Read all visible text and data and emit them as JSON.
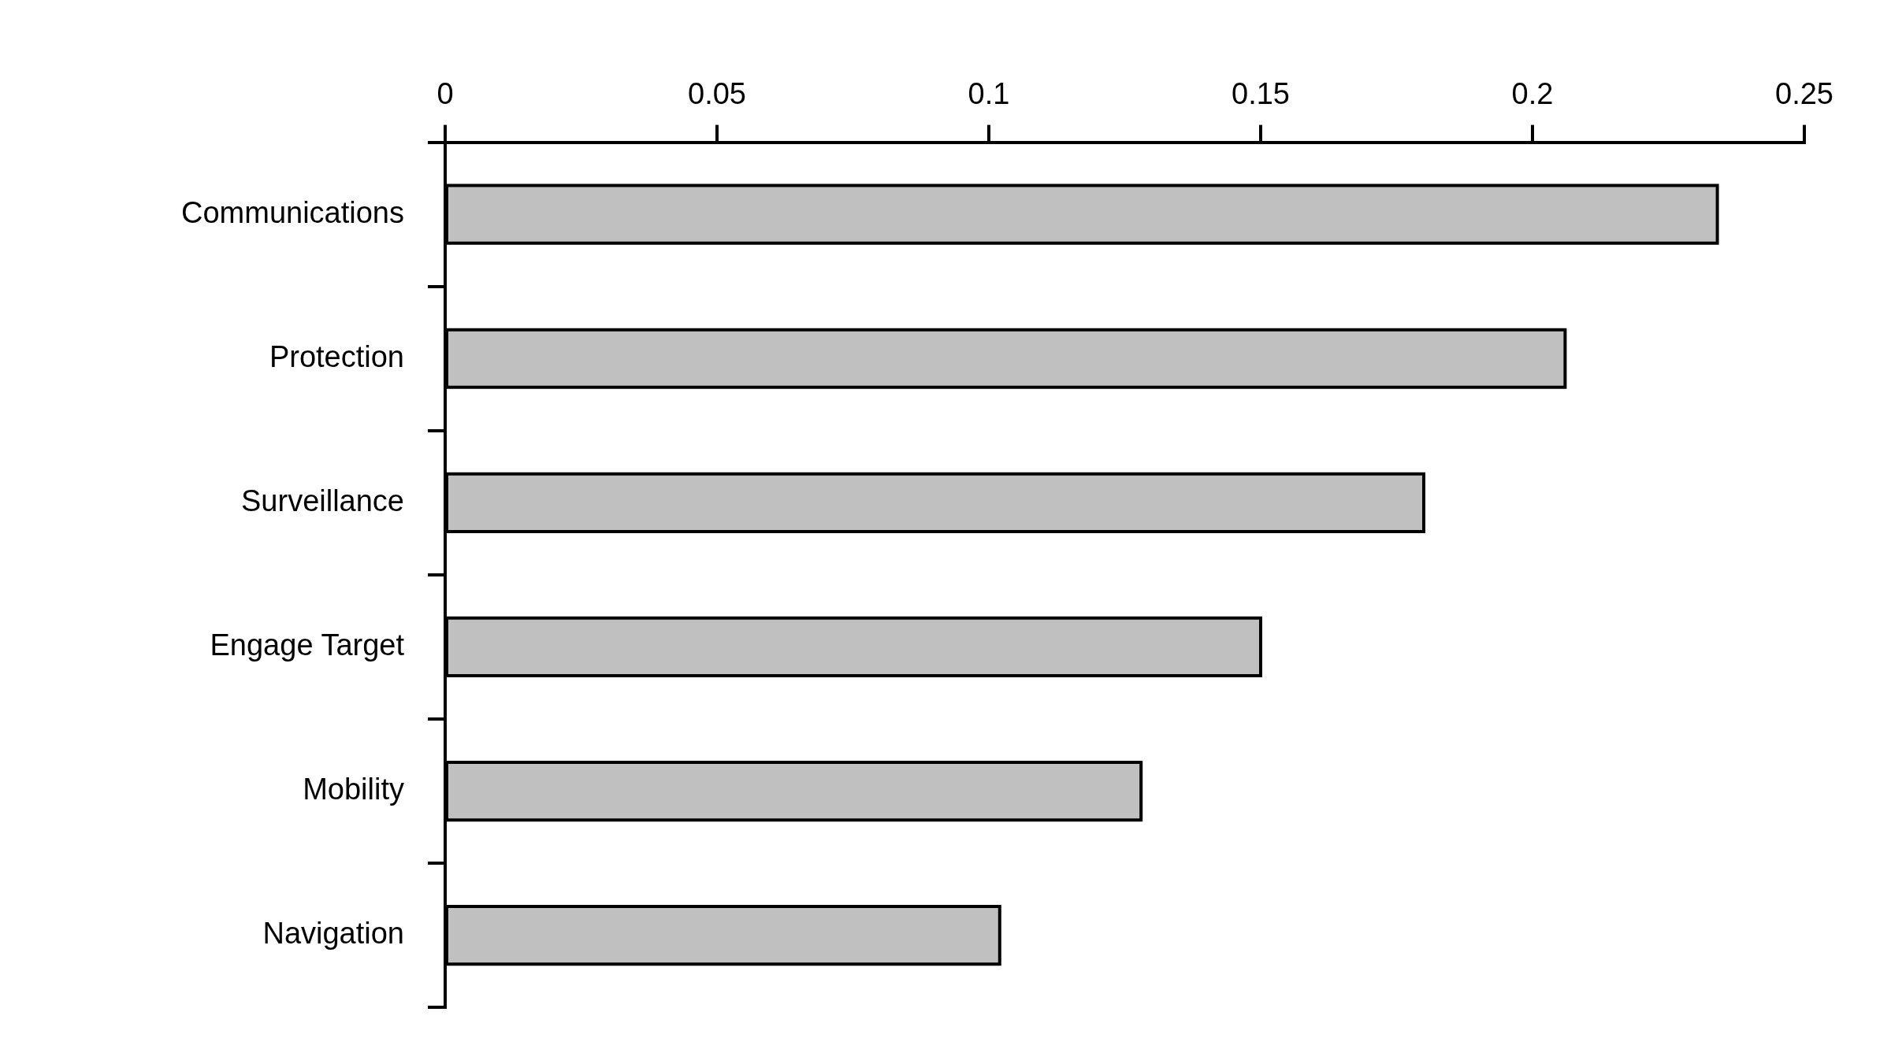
{
  "chart_data": {
    "type": "bar",
    "orientation": "horizontal",
    "categories": [
      "Communications",
      "Protection",
      "Surveillance",
      "Engage Target",
      "Mobility",
      "Navigation"
    ],
    "values": [
      0.234,
      0.206,
      0.18,
      0.15,
      0.128,
      0.102
    ],
    "color": "#c0c0c0",
    "xlim": [
      0,
      0.25
    ],
    "xticks": [
      0,
      0.05,
      0.1,
      0.15,
      0.2,
      0.25
    ],
    "grid": false
  }
}
